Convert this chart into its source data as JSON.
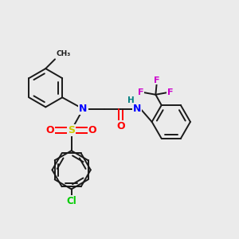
{
  "background_color": "#ebebeb",
  "colors": {
    "N": "#0000ff",
    "S": "#cccc00",
    "O": "#ff0000",
    "Cl": "#00cc00",
    "F": "#cc00cc",
    "H": "#008080",
    "C": "#1a1a1a",
    "bond": "#1a1a1a"
  },
  "lw": 1.4,
  "ring_r": 0.082
}
